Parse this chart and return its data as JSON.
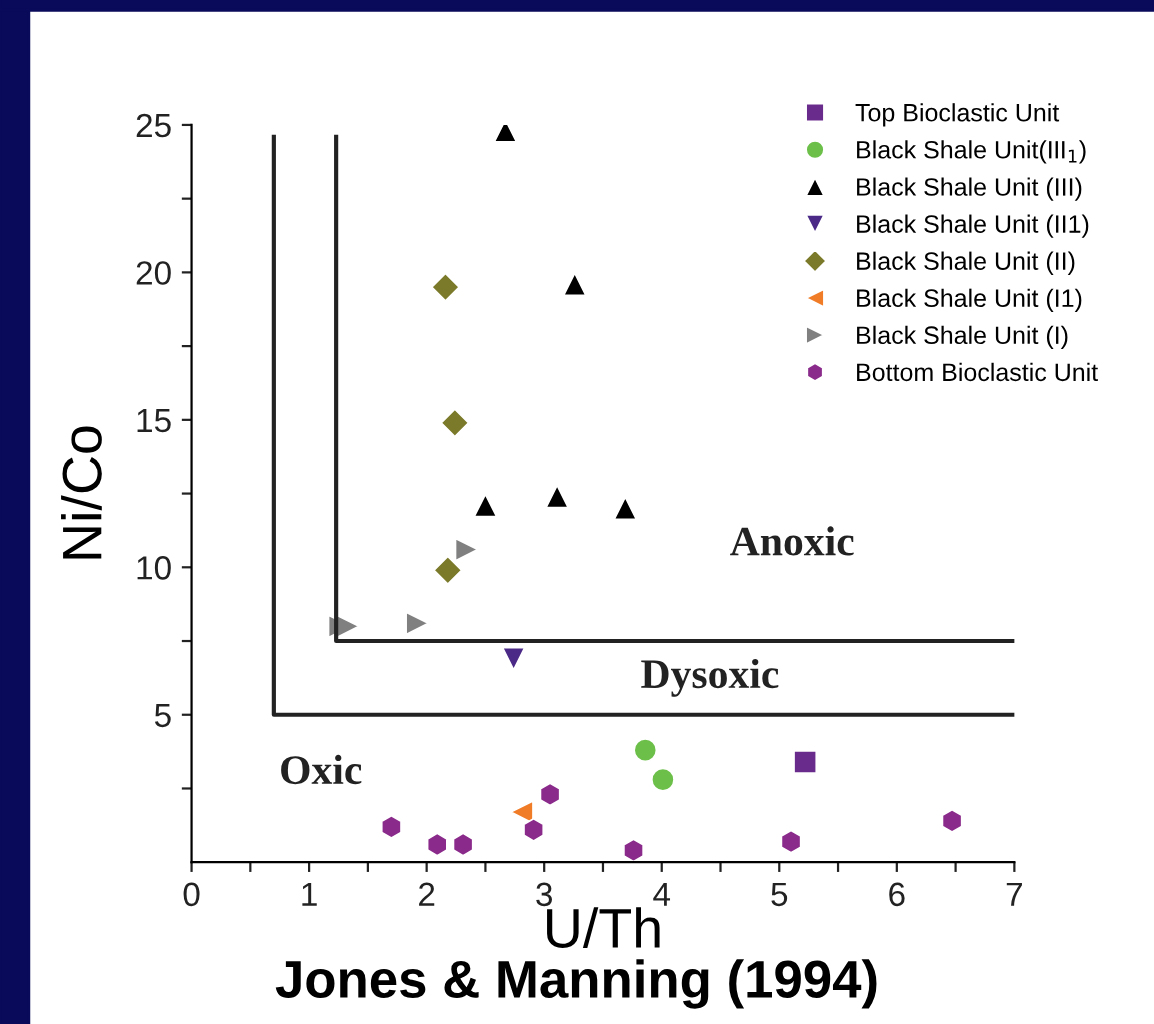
{
  "chart_data": {
    "type": "scatter",
    "xlabel": "U/Th",
    "ylabel": "Ni/Co",
    "xlim": [
      0,
      7
    ],
    "ylim": [
      0,
      25
    ],
    "xticks": [
      0,
      {
        "value": 0.5,
        "label": null
      },
      1,
      {
        "value": 1.5,
        "label": null
      },
      2,
      {
        "value": 2.5,
        "label": null
      },
      3,
      {
        "value": 3.5,
        "label": null
      },
      4,
      {
        "value": 4.5,
        "label": null
      },
      5,
      {
        "value": 5.5,
        "label": null
      },
      6,
      {
        "value": 6.5,
        "label": null
      },
      7
    ],
    "yticks": [
      {
        "value": 2.5,
        "label": null
      },
      5,
      {
        "value": 7.5,
        "label": null
      },
      10,
      {
        "value": 12.5,
        "label": null
      },
      15,
      {
        "value": 17.5,
        "label": null
      },
      20,
      {
        "value": 22.5,
        "label": null
      },
      25
    ],
    "grid": false,
    "legend": "top right",
    "series": [
      {
        "name": "Top Bioclastic Unit",
        "color": "#6a2c8c",
        "marker": "square",
        "x": [
          5.22
        ],
        "values": [
          3.4
        ]
      },
      {
        "name": "Black Shale Unit(III$_{1}$)",
        "color": "#6cc04a",
        "marker": "circle",
        "x": [
          3.86,
          4.01
        ],
        "values": [
          3.8,
          2.8
        ]
      },
      {
        "name": "Black Shale Unit (III)",
        "color": "#000000",
        "marker": "triangle",
        "x": [
          2.67,
          3.26,
          2.5,
          3.11,
          3.69
        ],
        "values": [
          24.8,
          19.6,
          12.1,
          12.4,
          12.0
        ]
      },
      {
        "name": "Black Shale Unit (II1)",
        "color": "#4b2a87",
        "marker": "triangle_down",
        "x": [
          2.74
        ],
        "values": [
          6.9
        ]
      },
      {
        "name": "Black Shale Unit (II)",
        "color": "#7a7a2a",
        "marker": "diamond",
        "x": [
          2.16,
          2.24,
          2.18
        ],
        "values": [
          19.5,
          14.9,
          9.9
        ]
      },
      {
        "name": "Black Shale Unit (I1)",
        "color": "#f07c28",
        "marker": "triangle_left",
        "x": [
          2.81
        ],
        "values": [
          1.7
        ]
      },
      {
        "name": "Black Shale Unit (I)",
        "color": "#808080",
        "marker": "triangle_right",
        "x": [
          1.26,
          1.33,
          1.92,
          2.34
        ],
        "values": [
          8.0,
          8.0,
          8.1,
          10.6
        ]
      },
      {
        "name": "Bottom Bioclastic Unit",
        "color": "#8a2a8a",
        "x": [
          1.7,
          2.09,
          2.31,
          2.91,
          3.05,
          3.76,
          5.1,
          6.47
        ],
        "values": [
          1.2,
          0.6,
          0.6,
          1.1,
          2.3,
          0.4,
          0.7,
          1.4
        ]
      },
      {
        "type": "line",
        "color": "#222222",
        "marker": "none",
        "x": [
          0.7,
          0.7,
          7
        ],
        "values": [
          24.6,
          5,
          5
        ]
      },
      {
        "type": "line",
        "color": "#222222",
        "marker": "none",
        "x": [
          1.23,
          1.23,
          7
        ],
        "values": [
          24.6,
          7.5,
          7.5
        ]
      }
    ],
    "annotations": [
      "Oxic",
      "Dysoxic",
      "Anoxic",
      "Jones & Manning (1994)"
    ]
  }
}
